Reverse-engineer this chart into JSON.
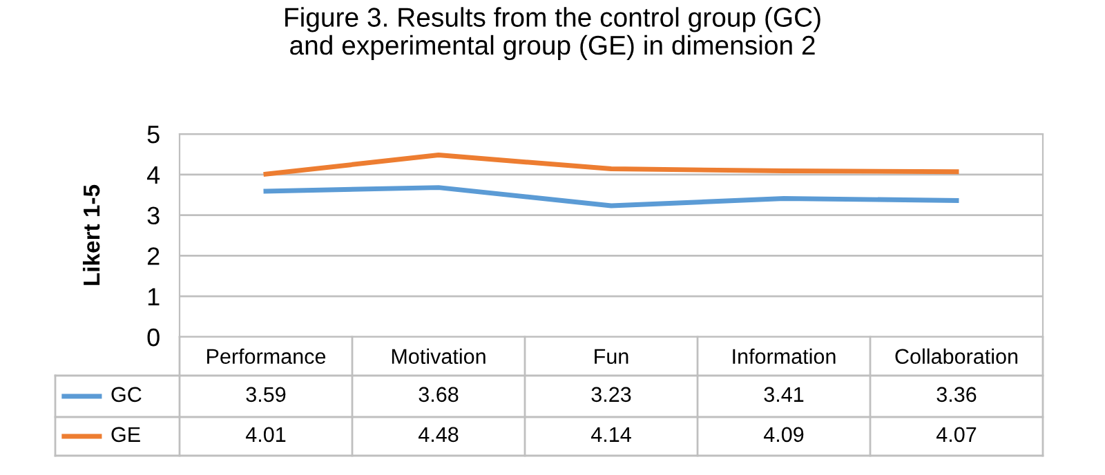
{
  "chart_data": {
    "type": "line",
    "title": "Figure 3. Results from the control group (GC)\nand experimental group (GE) in dimension 2",
    "ylabel": "Likert 1-5",
    "categories": [
      "Performance",
      "Motivation",
      "Fun",
      "Information",
      "Collaboration"
    ],
    "series": [
      {
        "name": "GC",
        "color": "#5b9bd5",
        "values": [
          3.59,
          3.68,
          3.23,
          3.41,
          3.36
        ]
      },
      {
        "name": "GE",
        "color": "#ed7d31",
        "values": [
          4.01,
          4.48,
          4.14,
          4.09,
          4.07
        ]
      }
    ],
    "ylim": [
      0,
      5
    ],
    "yticks": [
      0,
      1,
      2,
      3,
      4,
      5
    ],
    "grid": "y",
    "legend": "bottom",
    "data_labels": true,
    "marker": "none",
    "line_style": "solid"
  }
}
